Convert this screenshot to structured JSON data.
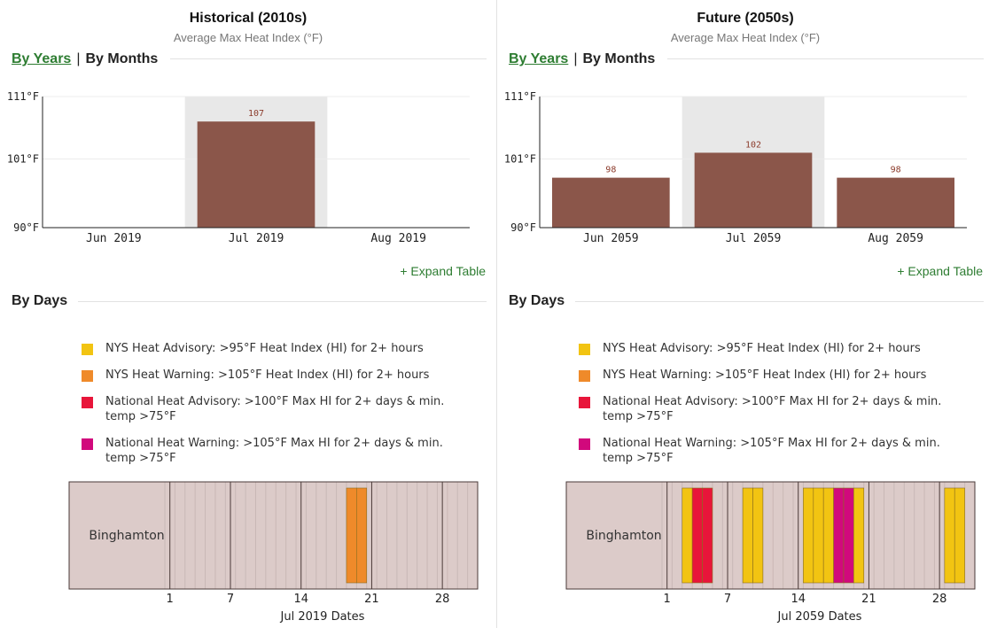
{
  "tabs": {
    "years": "By Years",
    "sep": "|",
    "months": "By Months"
  },
  "expand_label": "+ Expand Table",
  "days_title": "By Days",
  "legend": [
    {
      "label": "NYS Heat Advisory: >95°F Heat Index (HI) for 2+ hours",
      "color": "#f2c412"
    },
    {
      "label": "NYS Heat Warning: >105°F Heat Index (HI) for 2+ hours",
      "color": "#ef8a2a"
    },
    {
      "label": "National Heat Advisory: >100°F Max HI for 2+ days & min. temp >75°F",
      "color": "#e8153a"
    },
    {
      "label": "National Heat Warning: >105°F Max HI for 2+ days & min. temp >75°F",
      "color": "#d1097c"
    }
  ],
  "colors": {
    "bar": "#8b564a",
    "highlight": "#e8e8e8",
    "strip_bg": "#dccbc9",
    "accent_green": "#2e7d32"
  },
  "panels": [
    {
      "title": "Historical (2010s)",
      "subtitle": "Average Max Heat Index (°F)",
      "chart_data": {
        "type": "bar",
        "categories": [
          "Jun 2019",
          "Jul 2019",
          "Aug 2019"
        ],
        "values": [
          null,
          107,
          null
        ],
        "highlight_index": 1,
        "ylim": [
          90,
          111
        ],
        "yticks": [
          "90°F",
          "101°F",
          "111°F"
        ],
        "ytick_values": [
          90,
          101,
          111
        ]
      },
      "days": {
        "location": "Binghamton",
        "xlabel": "Jul 2019 Dates",
        "xticks": [
          1,
          7,
          14,
          21,
          28
        ],
        "month_days": 31,
        "events": [
          {
            "day": 19,
            "level": "nys_warning"
          },
          {
            "day": 20,
            "level": "nys_warning"
          }
        ]
      }
    },
    {
      "title": "Future (2050s)",
      "subtitle": "Average Max Heat Index (°F)",
      "chart_data": {
        "type": "bar",
        "categories": [
          "Jun 2059",
          "Jul 2059",
          "Aug 2059"
        ],
        "values": [
          98,
          102,
          98
        ],
        "highlight_index": 1,
        "ylim": [
          90,
          111
        ],
        "yticks": [
          "90°F",
          "101°F",
          "111°F"
        ],
        "ytick_values": [
          90,
          101,
          111
        ]
      },
      "days": {
        "location": "Binghamton",
        "xlabel": "Jul 2059 Dates",
        "xticks": [
          1,
          7,
          14,
          21,
          28
        ],
        "month_days": 31,
        "events": [
          {
            "day": 3,
            "level": "nys_advisory"
          },
          {
            "day": 4,
            "level": "national_advisory"
          },
          {
            "day": 5,
            "level": "national_advisory"
          },
          {
            "day": 9,
            "level": "nys_advisory"
          },
          {
            "day": 10,
            "level": "nys_advisory"
          },
          {
            "day": 15,
            "level": "nys_advisory"
          },
          {
            "day": 16,
            "level": "nys_advisory"
          },
          {
            "day": 17,
            "level": "nys_advisory"
          },
          {
            "day": 18,
            "level": "national_warning"
          },
          {
            "day": 19,
            "level": "national_warning"
          },
          {
            "day": 20,
            "level": "nys_advisory"
          },
          {
            "day": 29,
            "level": "nys_advisory"
          },
          {
            "day": 30,
            "level": "nys_advisory"
          }
        ]
      }
    }
  ]
}
